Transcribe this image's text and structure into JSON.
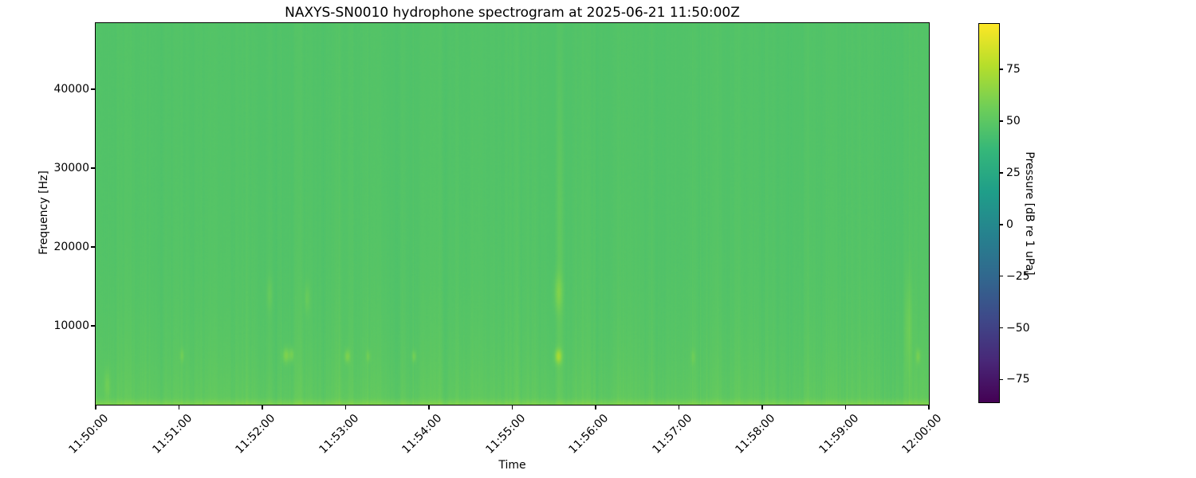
{
  "figure": {
    "background": "#ffffff"
  },
  "chart_data": {
    "type": "heatmap",
    "subtype": "spectrogram",
    "title": "NAXYS-SN0010 hydrophone spectrogram at 2025-06-21 11:50:00Z",
    "xlabel": "Time",
    "ylabel": "Frequency [Hz]",
    "x_ticks": [
      "11:50:00",
      "11:51:00",
      "11:52:00",
      "11:53:00",
      "11:54:00",
      "11:55:00",
      "11:56:00",
      "11:57:00",
      "11:58:00",
      "11:59:00",
      "12:00:00"
    ],
    "x_range_seconds": [
      0,
      600
    ],
    "y_ticks": [
      {
        "value": 10000,
        "label": "10000"
      },
      {
        "value": 20000,
        "label": "20000"
      },
      {
        "value": 30000,
        "label": "30000"
      },
      {
        "value": 40000,
        "label": "40000"
      }
    ],
    "ylim_hz": [
      0,
      48400
    ],
    "grid": false,
    "legend": "none",
    "colorbar": {
      "label": "Pressure [dB re 1 uPa]",
      "position": "right",
      "vmin": -86,
      "vmax": 97,
      "ticks": [
        {
          "value": 75,
          "label": "75"
        },
        {
          "value": 50,
          "label": "50"
        },
        {
          "value": 25,
          "label": "25"
        },
        {
          "value": 0,
          "label": "0"
        },
        {
          "value": -25,
          "label": "−25"
        },
        {
          "value": -50,
          "label": "−50"
        },
        {
          "value": -75,
          "label": "−75"
        }
      ],
      "colormap": "viridis",
      "viridis_stops": [
        "#440154",
        "#482878",
        "#3e4989",
        "#31688e",
        "#26828e",
        "#1f9e89",
        "#35b779",
        "#6ece58",
        "#b5de2b",
        "#fde725"
      ]
    },
    "field_model": {
      "comment": "broadband level ~47 dB (green), rising toward low frequencies, bright band below ~1 kHz, faint vertical striping",
      "base_db": 46.5,
      "lowfreq_boost_db": 5.0,
      "lowfreq_scale_hz": 9000,
      "bottom_band_db": 8.0,
      "bottom_band_hz": 550,
      "stripe_noise_db": 1.3,
      "pixel_noise_db": 0.45,
      "seed": 42
    },
    "events": [
      {
        "t_s": 8,
        "f_hz": 2500,
        "dt_s": 2.0,
        "df_hz": 1800,
        "gain_db": 7
      },
      {
        "t_s": 62,
        "f_hz": 6200,
        "dt_s": 1.5,
        "df_hz": 800,
        "gain_db": 7
      },
      {
        "t_s": 125,
        "f_hz": 14000,
        "dt_s": 2.0,
        "df_hz": 2000,
        "gain_db": 5
      },
      {
        "t_s": 137,
        "f_hz": 6200,
        "dt_s": 2.5,
        "df_hz": 900,
        "gain_db": 13
      },
      {
        "t_s": 141,
        "f_hz": 6300,
        "dt_s": 1.5,
        "df_hz": 800,
        "gain_db": 10
      },
      {
        "t_s": 152,
        "f_hz": 13500,
        "dt_s": 2.0,
        "df_hz": 1800,
        "gain_db": 6
      },
      {
        "t_s": 181,
        "f_hz": 6100,
        "dt_s": 2.0,
        "df_hz": 800,
        "gain_db": 12
      },
      {
        "t_s": 196,
        "f_hz": 6100,
        "dt_s": 1.5,
        "df_hz": 700,
        "gain_db": 7
      },
      {
        "t_s": 229,
        "f_hz": 6100,
        "dt_s": 1.5,
        "df_hz": 700,
        "gain_db": 9
      },
      {
        "t_s": 333,
        "f_hz": 6100,
        "dt_s": 2.5,
        "df_hz": 900,
        "gain_db": 22
      },
      {
        "t_s": 333,
        "f_hz": 14200,
        "dt_s": 3.0,
        "df_hz": 2200,
        "gain_db": 11
      },
      {
        "t_s": 334,
        "f_hz": 24000,
        "dt_s": 2.5,
        "df_hz": 20000,
        "gain_db": 4
      },
      {
        "t_s": 430,
        "f_hz": 6000,
        "dt_s": 1.5,
        "df_hz": 900,
        "gain_db": 6
      },
      {
        "t_s": 585,
        "f_hz": 10000,
        "dt_s": 2.5,
        "df_hz": 6000,
        "gain_db": 7
      },
      {
        "t_s": 592,
        "f_hz": 6100,
        "dt_s": 1.5,
        "df_hz": 900,
        "gain_db": 10
      }
    ]
  }
}
